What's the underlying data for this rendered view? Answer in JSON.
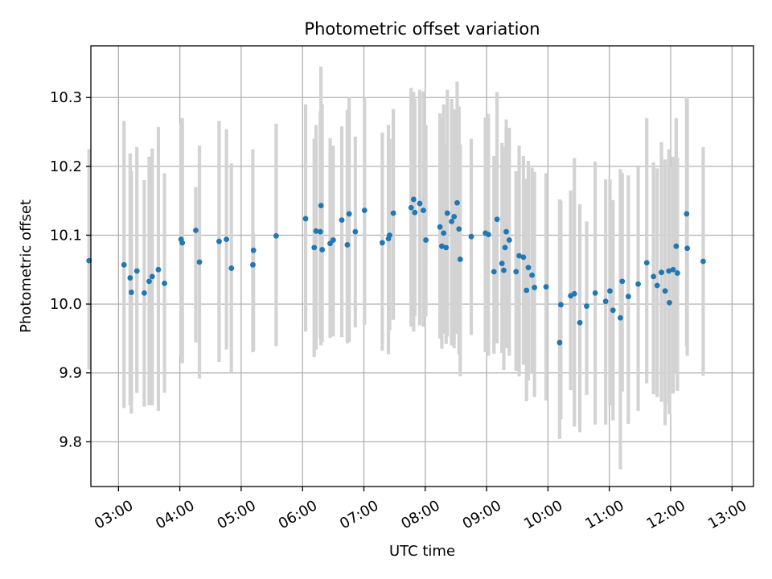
{
  "chart_data": {
    "type": "scatter",
    "title": "Photometric offset variation",
    "xlabel": "UTC time",
    "ylabel": "Photometric offset",
    "xlim": [
      2.55,
      13.35
    ],
    "ylim": [
      9.735,
      10.375
    ],
    "grid": true,
    "x_ticks": [
      {
        "value": 3,
        "label": "03:00"
      },
      {
        "value": 4,
        "label": "04:00"
      },
      {
        "value": 5,
        "label": "05:00"
      },
      {
        "value": 6,
        "label": "06:00"
      },
      {
        "value": 7,
        "label": "07:00"
      },
      {
        "value": 8,
        "label": "08:00"
      },
      {
        "value": 9,
        "label": "09:00"
      },
      {
        "value": 10,
        "label": "10:00"
      },
      {
        "value": 11,
        "label": "11:00"
      },
      {
        "value": 12,
        "label": "12:00"
      },
      {
        "value": 13,
        "label": "13:00"
      }
    ],
    "y_ticks": [
      {
        "value": 9.8,
        "label": "9.8"
      },
      {
        "value": 9.9,
        "label": "9.9"
      },
      {
        "value": 10.0,
        "label": "10.0"
      },
      {
        "value": 10.1,
        "label": "10.1"
      },
      {
        "value": 10.2,
        "label": "10.2"
      },
      {
        "value": 10.3,
        "label": "10.3"
      }
    ],
    "colors": {
      "points": "#1f77b4",
      "errorbars": "#d3d3d3",
      "grid": "#b0b0b0"
    },
    "points": [
      [
        2.52,
        10.063,
        9.905,
        10.225
      ],
      [
        3.09,
        10.057,
        9.849,
        10.266
      ],
      [
        3.19,
        10.038,
        9.853,
        10.219
      ],
      [
        3.21,
        10.017,
        9.841,
        10.193
      ],
      [
        3.3,
        10.048,
        9.871,
        10.228
      ],
      [
        3.42,
        10.016,
        9.851,
        10.18
      ],
      [
        3.5,
        10.033,
        9.853,
        10.214
      ],
      [
        3.55,
        10.04,
        9.853,
        10.226
      ],
      [
        3.65,
        10.05,
        9.845,
        10.257
      ],
      [
        3.75,
        10.03,
        9.871,
        10.19
      ],
      [
        4.02,
        10.094,
        9.925,
        10.262
      ],
      [
        4.04,
        10.089,
        9.914,
        10.27
      ],
      [
        4.26,
        10.107,
        9.944,
        10.17
      ],
      [
        4.32,
        10.061,
        9.892,
        10.23
      ],
      [
        4.64,
        10.091,
        9.916,
        10.266
      ],
      [
        4.76,
        10.094,
        9.934,
        10.254
      ],
      [
        4.84,
        10.052,
        9.9,
        10.204
      ],
      [
        5.19,
        10.057,
        9.93,
        10.225
      ],
      [
        5.2,
        10.078,
        9.932,
        10.1
      ],
      [
        5.57,
        10.099,
        9.939,
        10.262
      ],
      [
        6.05,
        10.124,
        9.96,
        10.29
      ],
      [
        6.19,
        10.082,
        9.923,
        10.24
      ],
      [
        6.22,
        10.106,
        9.934,
        10.26
      ],
      [
        6.29,
        10.105,
        9.95,
        10.28
      ],
      [
        6.3,
        10.143,
        9.94,
        10.345
      ],
      [
        6.32,
        10.079,
        9.945,
        10.29
      ],
      [
        6.45,
        10.088,
        9.951,
        10.241
      ],
      [
        6.5,
        10.093,
        9.953,
        10.23
      ],
      [
        6.64,
        10.122,
        9.952,
        10.258
      ],
      [
        6.73,
        10.086,
        9.943,
        10.282
      ],
      [
        6.76,
        10.131,
        9.945,
        10.3
      ],
      [
        6.86,
        10.105,
        9.966,
        10.243
      ],
      [
        7.01,
        10.136,
        9.97,
        10.3
      ],
      [
        7.3,
        10.089,
        9.932,
        10.249
      ],
      [
        7.4,
        10.095,
        9.927,
        10.26
      ],
      [
        7.42,
        10.1,
        9.962,
        10.24
      ],
      [
        7.48,
        10.132,
        9.977,
        10.283
      ],
      [
        7.77,
        10.14,
        9.967,
        10.314
      ],
      [
        7.81,
        10.152,
        9.96,
        10.308
      ],
      [
        7.83,
        10.133,
        9.982,
        10.298
      ],
      [
        7.91,
        10.146,
        9.969,
        10.311
      ],
      [
        7.97,
        10.136,
        9.967,
        10.309
      ],
      [
        8.01,
        10.093,
        9.982,
        10.26
      ],
      [
        8.24,
        10.112,
        9.95,
        10.277
      ],
      [
        8.27,
        10.084,
        9.935,
        10.27
      ],
      [
        8.3,
        10.103,
        9.957,
        10.29
      ],
      [
        8.34,
        10.082,
        9.942,
        10.233
      ],
      [
        8.36,
        10.132,
        9.953,
        10.311
      ],
      [
        8.43,
        10.12,
        9.94,
        10.298
      ],
      [
        8.47,
        10.127,
        9.936,
        10.283
      ],
      [
        8.52,
        10.147,
        9.957,
        10.323
      ],
      [
        8.55,
        10.109,
        9.927,
        10.287
      ],
      [
        8.57,
        10.065,
        9.895,
        10.232
      ],
      [
        8.75,
        10.098,
        9.955,
        10.24
      ],
      [
        8.98,
        10.103,
        9.93,
        10.271
      ],
      [
        9.03,
        10.101,
        9.925,
        10.276
      ],
      [
        9.12,
        10.047,
        9.928,
        10.215
      ],
      [
        9.17,
        10.123,
        9.943,
        10.308
      ],
      [
        9.25,
        10.059,
        9.929,
        10.234
      ],
      [
        9.28,
        10.049,
        9.904,
        10.208
      ],
      [
        9.3,
        10.082,
        9.947,
        10.229
      ],
      [
        9.32,
        10.105,
        9.936,
        10.268
      ],
      [
        9.37,
        10.093,
        9.925,
        10.256
      ],
      [
        9.48,
        10.047,
        9.903,
        10.193
      ],
      [
        9.53,
        10.07,
        9.895,
        10.23
      ],
      [
        9.6,
        10.068,
        9.912,
        10.215
      ],
      [
        9.65,
        10.02,
        9.859,
        10.182
      ],
      [
        9.68,
        10.053,
        9.889,
        10.208
      ],
      [
        9.74,
        10.042,
        9.9,
        10.198
      ],
      [
        9.78,
        10.024,
        9.865,
        10.192
      ],
      [
        9.97,
        10.025,
        9.86,
        10.19
      ],
      [
        10.19,
        9.944,
        9.804,
        10.152
      ],
      [
        10.21,
        9.999,
        9.833,
        10.15
      ],
      [
        10.37,
        10.012,
        9.875,
        10.165
      ],
      [
        10.43,
        10.015,
        9.822,
        10.212
      ],
      [
        10.52,
        9.973,
        9.814,
        10.145
      ],
      [
        10.63,
        9.997,
        9.868,
        10.12
      ],
      [
        10.77,
        10.016,
        9.825,
        10.207
      ],
      [
        10.94,
        10.004,
        9.825,
        10.181
      ],
      [
        11.01,
        10.019,
        9.853,
        10.181
      ],
      [
        11.06,
        9.991,
        9.831,
        10.151
      ],
      [
        11.18,
        9.98,
        9.76,
        10.196
      ],
      [
        11.21,
        10.033,
        9.873,
        10.19
      ],
      [
        11.31,
        10.011,
        9.826,
        10.187
      ],
      [
        11.47,
        10.029,
        9.845,
        10.199
      ],
      [
        11.61,
        10.06,
        9.885,
        10.27
      ],
      [
        11.72,
        10.04,
        9.869,
        10.206
      ],
      [
        11.78,
        10.027,
        9.865,
        10.197
      ],
      [
        11.85,
        10.046,
        9.858,
        10.235
      ],
      [
        11.91,
        10.019,
        9.824,
        10.21
      ],
      [
        11.97,
        10.048,
        9.854,
        10.225
      ],
      [
        11.98,
        10.002,
        9.84,
        10.2
      ],
      [
        12.04,
        10.05,
        9.87,
        10.214
      ],
      [
        12.09,
        10.084,
        9.9,
        10.27
      ],
      [
        12.11,
        10.045,
        9.874,
        10.213
      ],
      [
        12.26,
        10.131,
        9.938,
        10.3
      ],
      [
        12.27,
        10.081,
        9.925,
        10.3
      ],
      [
        12.53,
        10.062,
        9.896,
        10.228
      ]
    ]
  }
}
